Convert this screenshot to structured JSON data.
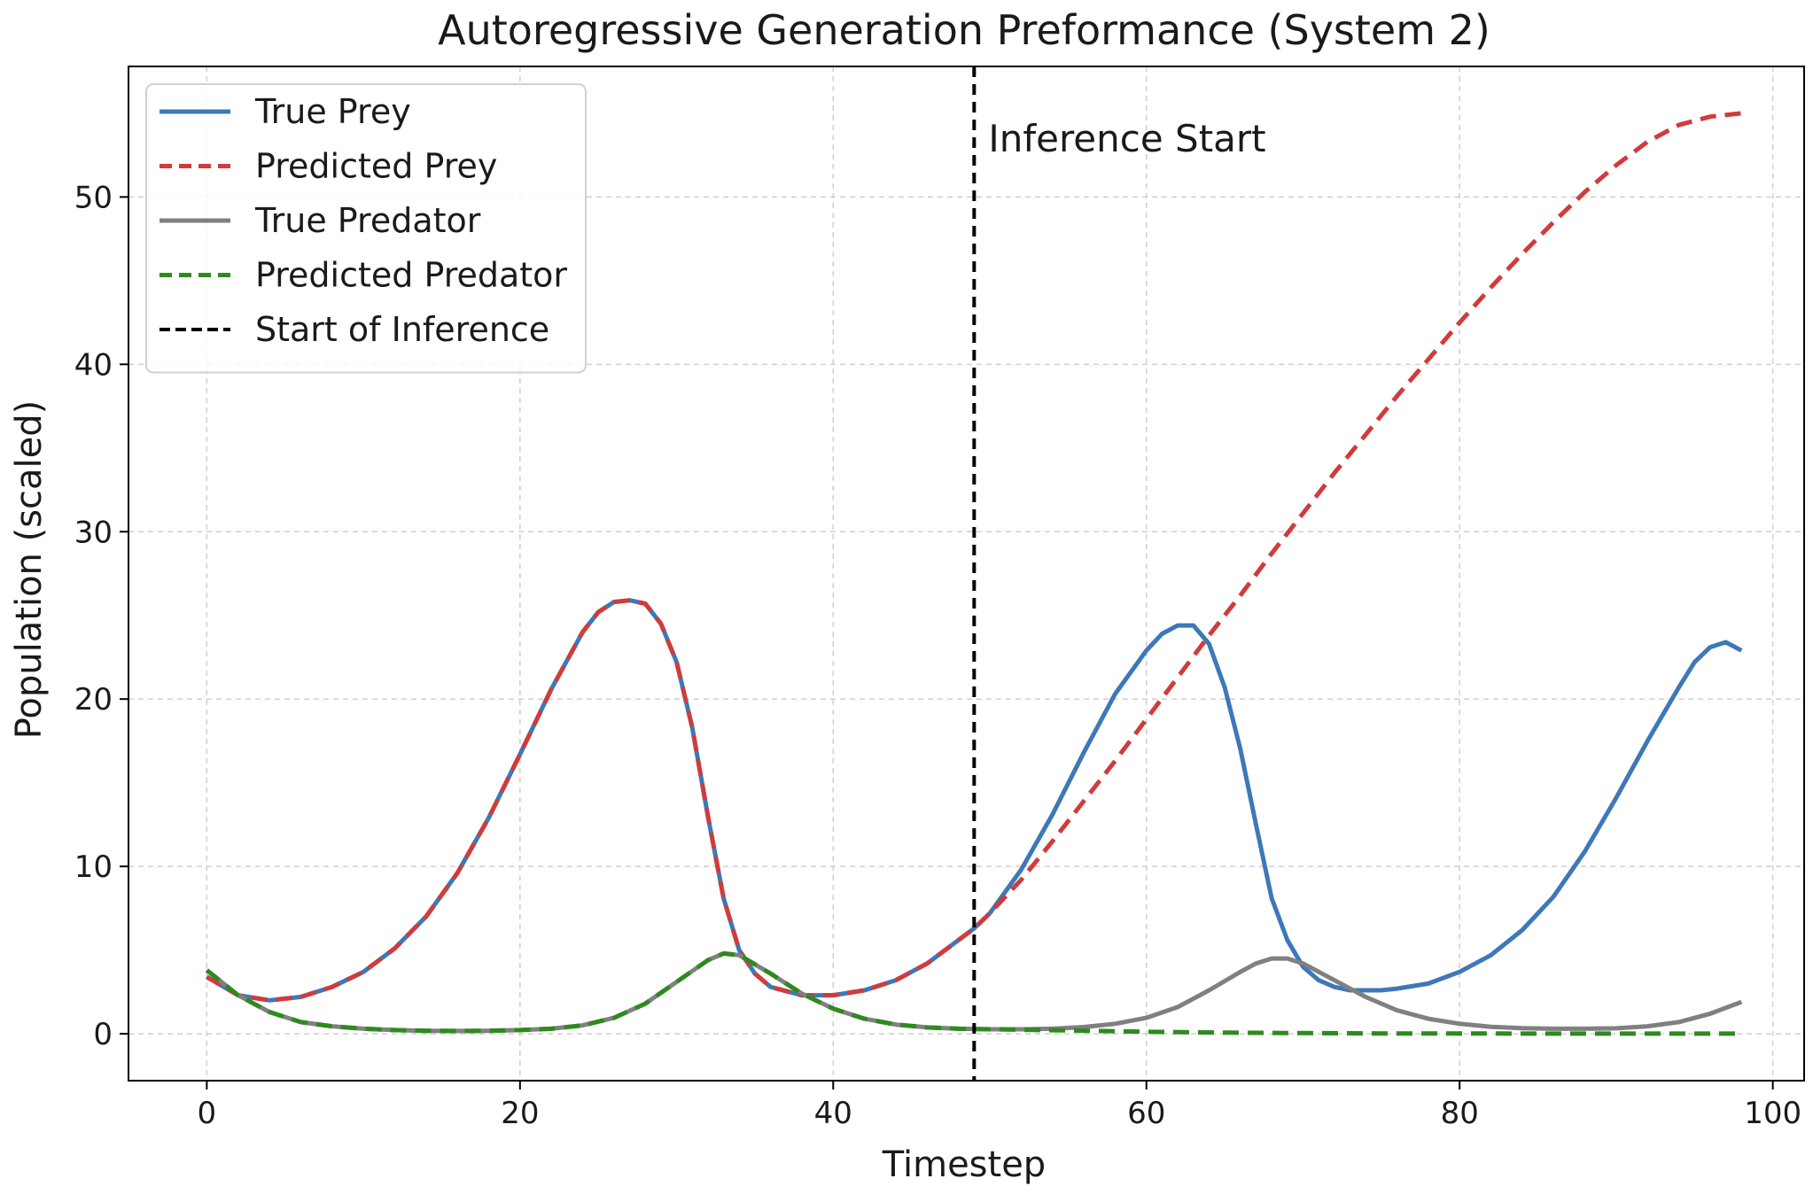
{
  "chart_data": {
    "type": "line",
    "title": "Autoregressive Generation Preformance (System 2)",
    "xlabel": "Timestep",
    "ylabel": "Population (scaled)",
    "xlim": [
      -5,
      102
    ],
    "ylim": [
      -2.8,
      57.8
    ],
    "x_ticks": [
      0,
      20,
      40,
      60,
      80,
      100
    ],
    "y_ticks": [
      0,
      10,
      20,
      30,
      40,
      50
    ],
    "grid": true,
    "legend_position": "top-left",
    "annotation": {
      "text": "Inference Start",
      "x": 49,
      "y": 53.5
    },
    "vline": {
      "name": "Start of Inference",
      "x": 49,
      "color": "#000000",
      "style": "dashed"
    },
    "series": [
      {
        "name": "True Prey",
        "color": "#3d78b8",
        "style": "solid",
        "x": [
          0,
          2,
          4,
          6,
          8,
          10,
          12,
          14,
          16,
          18,
          20,
          22,
          24,
          25,
          26,
          27,
          28,
          29,
          30,
          31,
          32,
          33,
          34,
          35,
          36,
          38,
          40,
          42,
          44,
          46,
          48,
          49,
          50,
          52,
          54,
          56,
          58,
          60,
          61,
          62,
          63,
          64,
          65,
          66,
          67,
          68,
          69,
          70,
          71,
          72,
          73,
          74,
          75,
          76,
          78,
          80,
          82,
          84,
          86,
          88,
          90,
          92,
          94,
          95,
          96,
          97,
          98
        ],
        "y": [
          3.4,
          2.3,
          2.0,
          2.2,
          2.8,
          3.7,
          5.1,
          7.0,
          9.6,
          12.9,
          16.7,
          20.6,
          24.0,
          25.2,
          25.8,
          25.9,
          25.7,
          24.5,
          22.2,
          18.3,
          13.0,
          8.1,
          5.0,
          3.6,
          2.8,
          2.3,
          2.3,
          2.6,
          3.2,
          4.2,
          5.6,
          6.3,
          7.2,
          9.8,
          13.1,
          16.8,
          20.3,
          22.9,
          23.9,
          24.4,
          24.4,
          23.3,
          20.7,
          17.0,
          12.5,
          8.1,
          5.6,
          4.0,
          3.2,
          2.8,
          2.6,
          2.6,
          2.6,
          2.7,
          3.0,
          3.7,
          4.7,
          6.2,
          8.2,
          10.9,
          14.1,
          17.5,
          20.7,
          22.2,
          23.1,
          23.4,
          22.9
        ]
      },
      {
        "name": "Predicted Prey",
        "color": "#d03b3b",
        "style": "dashed",
        "x": [
          0,
          2,
          4,
          6,
          8,
          10,
          12,
          14,
          16,
          18,
          20,
          22,
          24,
          25,
          26,
          27,
          28,
          29,
          30,
          31,
          32,
          33,
          34,
          35,
          36,
          38,
          40,
          42,
          44,
          46,
          48,
          49,
          50,
          52,
          54,
          56,
          58,
          60,
          62,
          64,
          66,
          68,
          70,
          72,
          74,
          76,
          78,
          80,
          82,
          84,
          86,
          88,
          90,
          92,
          94,
          96,
          98
        ],
        "y": [
          3.4,
          2.3,
          2.0,
          2.2,
          2.8,
          3.7,
          5.1,
          7.0,
          9.6,
          12.9,
          16.7,
          20.6,
          24.0,
          25.2,
          25.8,
          25.9,
          25.7,
          24.5,
          22.2,
          18.3,
          13.0,
          8.1,
          5.0,
          3.6,
          2.8,
          2.3,
          2.3,
          2.6,
          3.2,
          4.2,
          5.6,
          6.3,
          7.2,
          9.2,
          11.5,
          13.9,
          16.3,
          18.8,
          21.3,
          23.8,
          26.2,
          28.7,
          31.1,
          33.5,
          35.8,
          38.1,
          40.3,
          42.5,
          44.6,
          46.6,
          48.5,
          50.3,
          51.9,
          53.3,
          54.3,
          54.8,
          55.0
        ]
      },
      {
        "name": "True Predator",
        "color": "#808080",
        "style": "solid",
        "x": [
          0,
          2,
          4,
          6,
          8,
          10,
          12,
          14,
          16,
          18,
          20,
          22,
          24,
          26,
          28,
          30,
          32,
          33,
          34,
          36,
          38,
          40,
          42,
          44,
          46,
          48,
          50,
          52,
          54,
          56,
          58,
          60,
          62,
          64,
          66,
          67,
          68,
          69,
          70,
          72,
          74,
          76,
          78,
          80,
          82,
          84,
          86,
          88,
          90,
          92,
          94,
          96,
          98
        ],
        "y": [
          3.8,
          2.3,
          1.3,
          0.7,
          0.45,
          0.3,
          0.22,
          0.18,
          0.17,
          0.18,
          0.22,
          0.3,
          0.5,
          0.95,
          1.8,
          3.1,
          4.4,
          4.8,
          4.7,
          3.6,
          2.4,
          1.5,
          0.9,
          0.55,
          0.38,
          0.3,
          0.27,
          0.27,
          0.3,
          0.4,
          0.6,
          0.95,
          1.6,
          2.6,
          3.7,
          4.2,
          4.5,
          4.5,
          4.2,
          3.2,
          2.2,
          1.4,
          0.9,
          0.6,
          0.42,
          0.34,
          0.3,
          0.3,
          0.33,
          0.45,
          0.7,
          1.2,
          1.9
        ]
      },
      {
        "name": "Predicted Predator",
        "color": "#2e8a1e",
        "style": "dashed",
        "x": [
          0,
          2,
          4,
          6,
          8,
          10,
          12,
          14,
          16,
          18,
          20,
          22,
          24,
          26,
          28,
          30,
          32,
          33,
          34,
          36,
          38,
          40,
          42,
          44,
          46,
          48,
          50,
          55,
          60,
          65,
          70,
          75,
          80,
          85,
          90,
          95,
          98
        ],
        "y": [
          3.8,
          2.3,
          1.3,
          0.7,
          0.45,
          0.3,
          0.22,
          0.18,
          0.17,
          0.18,
          0.22,
          0.3,
          0.5,
          0.95,
          1.8,
          3.1,
          4.4,
          4.8,
          4.7,
          3.6,
          2.4,
          1.5,
          0.9,
          0.55,
          0.38,
          0.3,
          0.27,
          0.2,
          0.12,
          0.07,
          0.04,
          0.02,
          0.02,
          0.01,
          0.01,
          0.01,
          0.01
        ]
      }
    ]
  }
}
